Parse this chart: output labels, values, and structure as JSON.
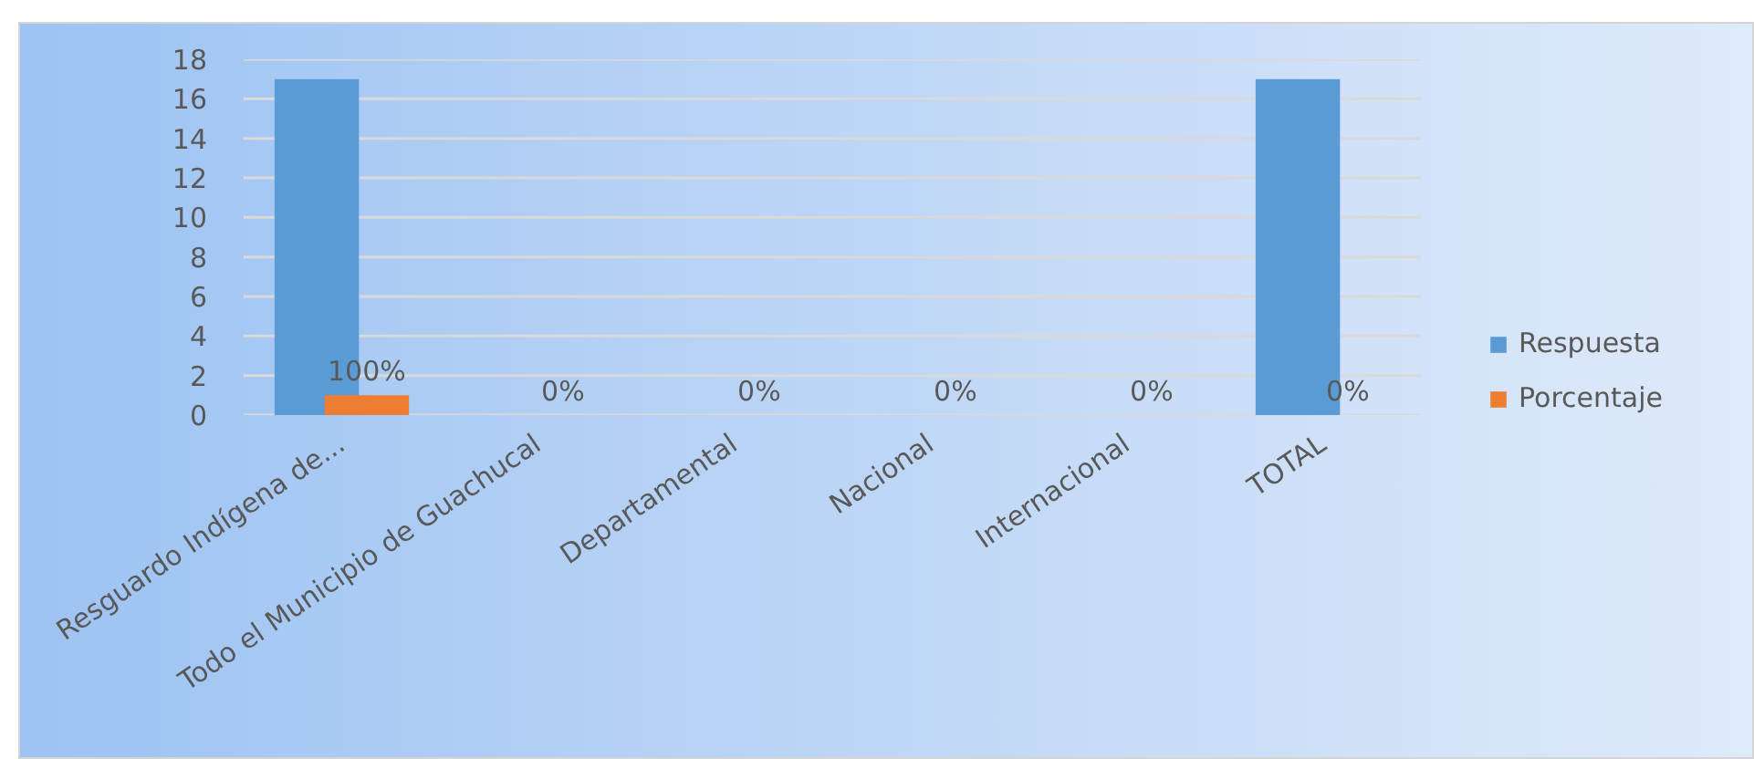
{
  "chart_data": {
    "type": "bar",
    "categories": [
      "Resguardo Indígena de...",
      "Todo el Municipio de Guachucal",
      "Departamental",
      "Nacional",
      "Internacional",
      "TOTAL"
    ],
    "series": [
      {
        "name": "Respuesta",
        "color": "#5b9bd5",
        "values": [
          17,
          0,
          0,
          0,
          0,
          17
        ]
      },
      {
        "name": "Porcentaje",
        "color": "#ed7d31",
        "values": [
          1,
          0,
          0,
          0,
          0,
          0
        ],
        "value_labels": [
          "100%",
          "0%",
          "0%",
          "0%",
          "0%",
          "0%"
        ]
      }
    ],
    "ylim": [
      0,
      18
    ],
    "yticks": [
      0,
      2,
      4,
      6,
      8,
      10,
      12,
      14,
      16,
      18
    ],
    "grid": "y",
    "legend": "right"
  }
}
